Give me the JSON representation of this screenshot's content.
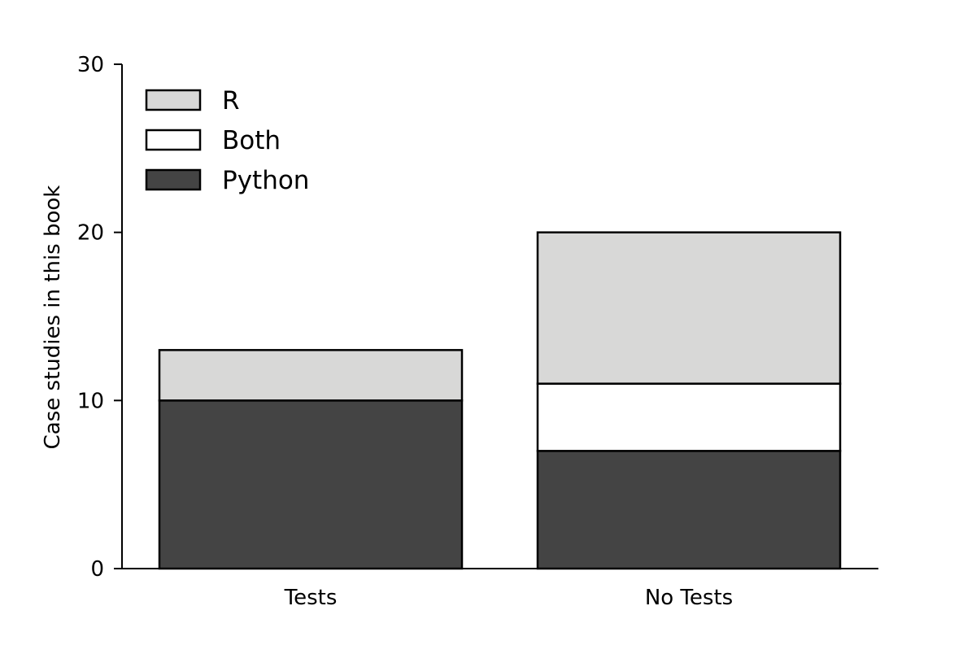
{
  "chart_data": {
    "type": "bar",
    "stacked": true,
    "title": "",
    "xlabel": "",
    "ylabel": "Case studies in this book",
    "categories": [
      "Tests",
      "No Tests"
    ],
    "series": [
      {
        "name": "Python",
        "values": [
          10,
          7
        ],
        "color": "#444444"
      },
      {
        "name": "Both",
        "values": [
          0,
          4
        ],
        "color": "#ffffff"
      },
      {
        "name": "R",
        "values": [
          3,
          9
        ],
        "color": "#d8d8d7"
      }
    ],
    "ylim": [
      0,
      30
    ],
    "yticks": [
      0,
      10,
      20,
      30
    ],
    "grid": false,
    "legend": {
      "placement": "top-left",
      "order": [
        "R",
        "Both",
        "Python"
      ]
    },
    "colors": {
      "edge": "#000000",
      "axis": "#000000"
    }
  }
}
